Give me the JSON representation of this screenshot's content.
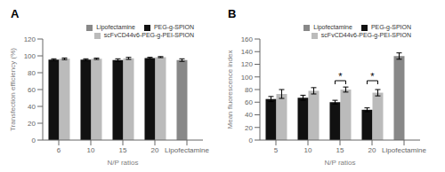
{
  "chart_data": [
    {
      "type": "bar",
      "title": "A",
      "x_label": "N/P ratios",
      "y_label": "Transfection efficiency (%)",
      "categories": [
        "6",
        "10",
        "15",
        "20",
        "Lipofectamine"
      ],
      "series": [
        {
          "name": "PEG-g-SPION",
          "color": "#111111",
          "values": [
            95.5,
            95.5,
            95.0,
            97.5,
            null
          ],
          "errors": [
            1.0,
            1.0,
            1.5,
            0.8,
            null
          ]
        },
        {
          "name": "scFvCD44v6-PEG-g-PEI-SPION",
          "color": "#bbbbbb",
          "values": [
            96.5,
            96.5,
            97.0,
            98.5,
            null
          ],
          "errors": [
            1.0,
            0.8,
            1.2,
            0.6,
            null
          ]
        },
        {
          "name": "Lipofectamine",
          "color": "#888888",
          "values": [
            null,
            null,
            null,
            null,
            95.0
          ],
          "errors": [
            null,
            null,
            null,
            null,
            1.5
          ]
        }
      ],
      "ylim": [
        0,
        120
      ],
      "yticks": [
        0,
        20,
        40,
        60,
        80,
        100,
        120
      ],
      "legend": "upper right"
    },
    {
      "type": "bar",
      "title": "B",
      "x_label": "N/P ratios",
      "y_label": "Mean fluorescence index",
      "categories": [
        "5",
        "10",
        "15",
        "20",
        "Lipofectamine"
      ],
      "series": [
        {
          "name": "PEG-g-SPION",
          "color": "#111111",
          "values": [
            65,
            67,
            60,
            48,
            null
          ],
          "errors": [
            4,
            4,
            3,
            3,
            null
          ]
        },
        {
          "name": "scFvCD44v6-PEG-g-PEI-SPION",
          "color": "#bbbbbb",
          "values": [
            73,
            78,
            80,
            75,
            null
          ],
          "errors": [
            7,
            5,
            4,
            5,
            null
          ]
        },
        {
          "name": "Lipofectamine",
          "color": "#888888",
          "values": [
            null,
            null,
            null,
            null,
            133
          ],
          "errors": [
            null,
            null,
            null,
            null,
            5
          ]
        }
      ],
      "ylim": [
        0,
        160
      ],
      "yticks": [
        0,
        20,
        40,
        60,
        80,
        100,
        120,
        140,
        160
      ],
      "legend": "upper right",
      "annotations": [
        {
          "text": "*",
          "category": "15",
          "y": 94,
          "series": [
            "PEG-g-SPION",
            "scFvCD44v6-PEG-g-PEI-SPION"
          ]
        },
        {
          "text": "*",
          "category": "20",
          "y": 94,
          "series": [
            "PEG-g-SPION",
            "scFvCD44v6-PEG-g-PEI-SPION"
          ]
        }
      ]
    }
  ]
}
